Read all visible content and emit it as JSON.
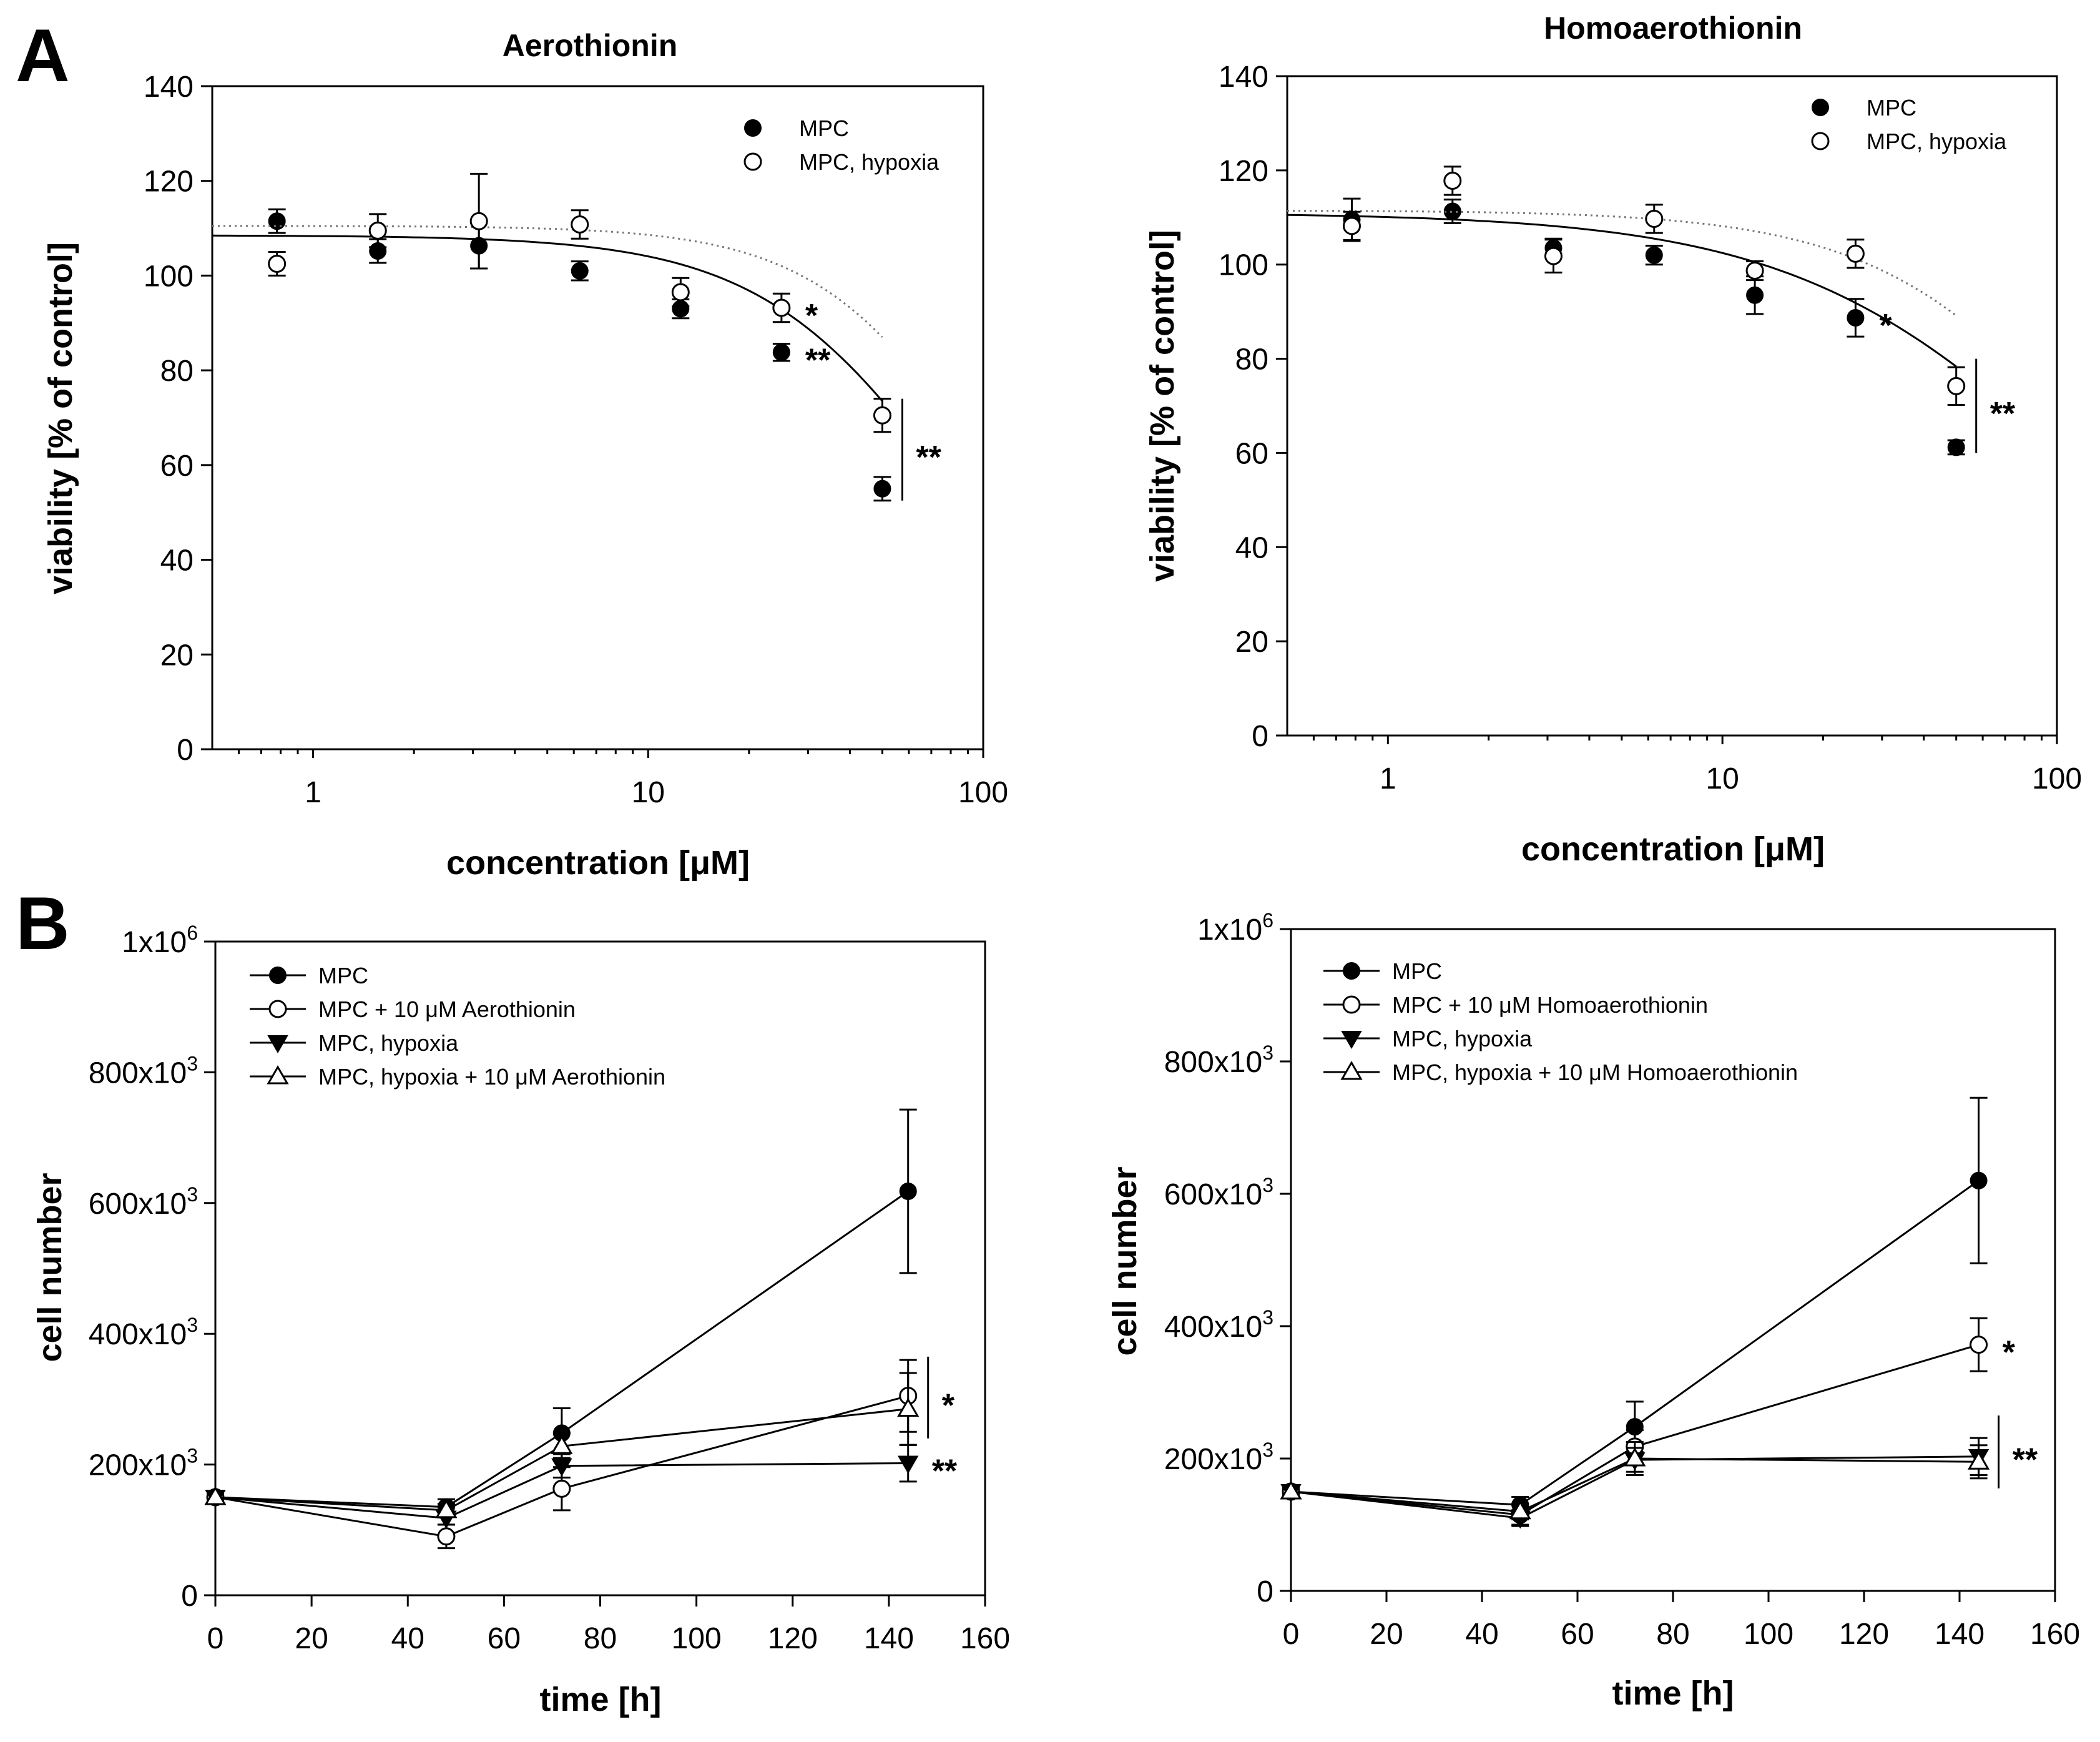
{
  "panel_labels": [
    "A",
    "B"
  ],
  "chart_data": [
    {
      "id": "A1",
      "type": "scatter",
      "title": "Aerothionin",
      "xlabel": "concentration [μM]",
      "ylabel": "viability [% of control]",
      "xscale": "log",
      "xlim": [
        0.5,
        100
      ],
      "ylim": [
        0,
        140
      ],
      "xticks": [
        1,
        10,
        100
      ],
      "xtick_labels": [
        "1",
        "10",
        "100"
      ],
      "yticks": [
        0,
        20,
        40,
        60,
        80,
        100,
        120,
        140
      ],
      "ytick_labels": [
        "0",
        "20",
        "40",
        "60",
        "80",
        "100",
        "120",
        "140"
      ],
      "grid": false,
      "legend_position": "top-right",
      "series": [
        {
          "name": "MPC",
          "marker": "filled-circle",
          "color": "#000000",
          "x": [
            0.78,
            1.56,
            3.125,
            6.25,
            12.5,
            25,
            50
          ],
          "y": [
            111.5,
            105.2,
            106.3,
            101,
            93,
            83.8,
            55
          ],
          "err": [
            2.5,
            2.5,
            4.8,
            2,
            2,
            1.8,
            2.5
          ],
          "fit": {
            "style": "solid",
            "top": 108.5,
            "ec50": 82,
            "hill": 1.5,
            "x_range": [
              0.5,
              50
            ]
          }
        },
        {
          "name": "MPC, hypoxia",
          "marker": "open-circle",
          "color": "#000000",
          "x": [
            0.78,
            1.56,
            3.125,
            6.25,
            12.5,
            25,
            50
          ],
          "y": [
            102.5,
            109.5,
            111.5,
            110.8,
            96.5,
            93.2,
            70.5
          ],
          "err": [
            2.5,
            3.5,
            10,
            3,
            3,
            3,
            3.5
          ],
          "fit": {
            "style": "dotted",
            "top": 110.5,
            "ec50": 108,
            "hill": 1.7,
            "x_range": [
              0.5,
              50
            ]
          }
        }
      ],
      "significance": [
        {
          "label": "*",
          "x": 25,
          "y": 93.2,
          "bracket": false
        },
        {
          "label": "**",
          "x": 25,
          "y": 83.8,
          "bracket": false
        },
        {
          "label": "**",
          "x": 50,
          "y_range": [
            52.5,
            74
          ],
          "bracket": true
        }
      ]
    },
    {
      "id": "A2",
      "type": "scatter",
      "title": "Homoaerothionin",
      "xlabel": "concentration [μM]",
      "ylabel": "viability [% of control]",
      "xscale": "log",
      "xlim": [
        0.5,
        100
      ],
      "ylim": [
        0,
        140
      ],
      "xticks": [
        1,
        10,
        100
      ],
      "xtick_labels": [
        "1",
        "10",
        "100"
      ],
      "yticks": [
        0,
        20,
        40,
        60,
        80,
        100,
        120,
        140
      ],
      "ytick_labels": [
        "0",
        "20",
        "40",
        "60",
        "80",
        "100",
        "120",
        "140"
      ],
      "grid": false,
      "legend_position": "top-right",
      "series": [
        {
          "name": "MPC",
          "marker": "filled-circle",
          "color": "#000000",
          "x": [
            0.78,
            1.56,
            3.125,
            6.25,
            12.5,
            25,
            50
          ],
          "y": [
            109.5,
            111.3,
            103.5,
            102,
            93.5,
            88.7,
            61.2
          ],
          "err": [
            4.5,
            2.5,
            2,
            2,
            4,
            4,
            1.5
          ],
          "fit": {
            "style": "solid",
            "top": 111,
            "ec50": 120,
            "hill": 1.0,
            "x_range": [
              0.5,
              50
            ]
          }
        },
        {
          "name": "MPC, hypoxia",
          "marker": "open-circle",
          "color": "#000000",
          "x": [
            0.78,
            1.56,
            3.125,
            6.25,
            12.5,
            25,
            50
          ],
          "y": [
            108.2,
            117.8,
            101.8,
            109.7,
            98.7,
            102.3,
            74.2
          ],
          "err": [
            3,
            3,
            3.5,
            3,
            2,
            3,
            4
          ],
          "fit": {
            "style": "dotted",
            "top": 111.5,
            "ec50": 145,
            "hill": 1.3,
            "x_range": [
              0.5,
              50
            ]
          }
        }
      ],
      "significance": [
        {
          "label": "*",
          "x": 25,
          "y": 88.7,
          "bracket": false
        },
        {
          "label": "**",
          "x": 50,
          "y_range": [
            60,
            80
          ],
          "bracket": true
        }
      ]
    },
    {
      "id": "B1",
      "type": "line",
      "title": "",
      "xlabel": "time [h]",
      "ylabel": "cell number",
      "xlim": [
        0,
        160
      ],
      "ylim": [
        0,
        1000000
      ],
      "xticks": [
        0,
        20,
        40,
        60,
        80,
        100,
        120,
        140,
        160
      ],
      "xtick_labels": [
        "0",
        "20",
        "40",
        "60",
        "80",
        "100",
        "120",
        "140",
        "160"
      ],
      "yticks": [
        0,
        200000,
        400000,
        600000,
        800000,
        1000000
      ],
      "ytick_labels": [
        {
          "base": "0",
          "exp": ""
        },
        {
          "base": "200x10",
          "exp": "3"
        },
        {
          "base": "400x10",
          "exp": "3"
        },
        {
          "base": "600x10",
          "exp": "3"
        },
        {
          "base": "800x10",
          "exp": "3"
        },
        {
          "base": "1x10",
          "exp": "6"
        }
      ],
      "grid": false,
      "legend_position": "top-left",
      "series": [
        {
          "name": "MPC",
          "marker": "filled-circle",
          "color": "#000000",
          "x": [
            0,
            48,
            72,
            144
          ],
          "y": [
            150000,
            135000,
            248000,
            618000
          ],
          "err": [
            5000,
            12000,
            38000,
            125000
          ]
        },
        {
          "name": "MPC + 10 μM Aerothionin",
          "marker": "open-circle",
          "color": "#000000",
          "x": [
            0,
            48,
            72,
            144
          ],
          "y": [
            150000,
            90000,
            163000,
            305000
          ],
          "err": [
            5000,
            18000,
            33000,
            55000
          ]
        },
        {
          "name": "MPC, hypoxia",
          "marker": "filled-triangle-down",
          "color": "#000000",
          "x": [
            0,
            48,
            72,
            144
          ],
          "y": [
            150000,
            118000,
            198000,
            202000
          ],
          "err": [
            5000,
            10000,
            18000,
            28000
          ]
        },
        {
          "name": "MPC, hypoxia + 10 μM Aerothionin",
          "marker": "open-triangle-up",
          "color": "#000000",
          "x": [
            0,
            48,
            72,
            144
          ],
          "y": [
            150000,
            130000,
            228000,
            285000
          ],
          "err": [
            5000,
            10000,
            20000,
            55000
          ]
        }
      ],
      "significance": [
        {
          "label": "*",
          "x": 144,
          "y_range": [
            240000,
            365000
          ],
          "bracket": true
        },
        {
          "label": "**",
          "x": 144,
          "y": 202000,
          "bracket": false
        }
      ]
    },
    {
      "id": "B2",
      "type": "line",
      "title": "",
      "xlabel": "time [h]",
      "ylabel": "cell number",
      "xlim": [
        0,
        160
      ],
      "ylim": [
        0,
        1000000
      ],
      "xticks": [
        0,
        20,
        40,
        60,
        80,
        100,
        120,
        140,
        160
      ],
      "xtick_labels": [
        "0",
        "20",
        "40",
        "60",
        "80",
        "100",
        "120",
        "140",
        "160"
      ],
      "yticks": [
        0,
        200000,
        400000,
        600000,
        800000,
        1000000
      ],
      "ytick_labels": [
        {
          "base": "0",
          "exp": ""
        },
        {
          "base": "200x10",
          "exp": "3"
        },
        {
          "base": "400x10",
          "exp": "3"
        },
        {
          "base": "600x10",
          "exp": "3"
        },
        {
          "base": "800x10",
          "exp": "3"
        },
        {
          "base": "1x10",
          "exp": "6"
        }
      ],
      "grid": false,
      "legend_position": "top-left",
      "series": [
        {
          "name": "MPC",
          "marker": "filled-circle",
          "color": "#000000",
          "x": [
            0,
            48,
            72,
            144
          ],
          "y": [
            150000,
            130000,
            248000,
            620000
          ],
          "err": [
            5000,
            12000,
            38000,
            125000
          ]
        },
        {
          "name": "MPC + 10 μM Homoaerothionin",
          "marker": "open-circle",
          "color": "#000000",
          "x": [
            0,
            48,
            72,
            144
          ],
          "y": [
            150000,
            115000,
            218000,
            372000
          ],
          "err": [
            5000,
            15000,
            25000,
            40000
          ]
        },
        {
          "name": "MPC, hypoxia",
          "marker": "filled-triangle-down",
          "color": "#000000",
          "x": [
            0,
            48,
            72,
            144
          ],
          "y": [
            150000,
            110000,
            198000,
            203000
          ],
          "err": [
            5000,
            12000,
            18000,
            28000
          ]
        },
        {
          "name": "MPC, hypoxia + 10 μM Homoaerothionin",
          "marker": "open-triangle-up",
          "color": "#000000",
          "x": [
            0,
            48,
            72,
            144
          ],
          "y": [
            150000,
            120000,
            200000,
            195000
          ],
          "err": [
            5000,
            12000,
            25000,
            25000
          ]
        }
      ],
      "significance": [
        {
          "label": "*",
          "x": 144,
          "y": 372000,
          "bracket": false
        },
        {
          "label": "**",
          "x": 144,
          "y_range": [
            155000,
            265000
          ],
          "bracket": true
        }
      ]
    }
  ]
}
